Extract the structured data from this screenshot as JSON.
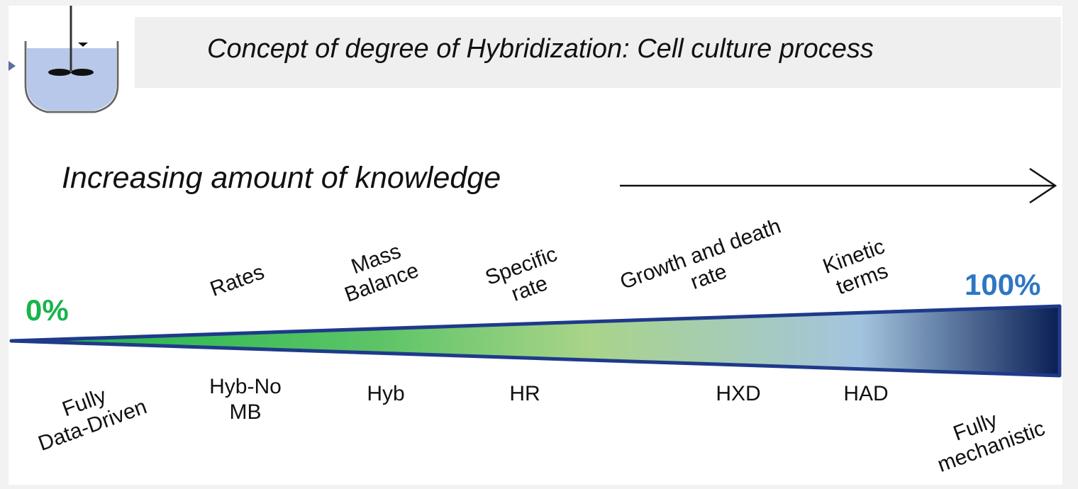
{
  "title": "Concept of degree of Hybridization: Cell culture process",
  "knowledge_axis": "Increasing amount of knowledge",
  "scale": {
    "start_label": "0%",
    "end_label": "100%",
    "start_color": "#18b44a",
    "end_color": "#2e76c2"
  },
  "knowledge_terms": [
    {
      "line1": "Rates",
      "line2": ""
    },
    {
      "line1": "Mass",
      "line2": "Balance"
    },
    {
      "line1": "Specific",
      "line2": "rate"
    },
    {
      "line1": "Growth and death",
      "line2": "rate"
    },
    {
      "line1": "Kinetic",
      "line2": "terms"
    }
  ],
  "model_labels": [
    {
      "line1": "Fully",
      "line2": "Data-Driven"
    },
    {
      "line1": "Hyb-No",
      "line2": "MB"
    },
    {
      "line1": "Hyb",
      "line2": ""
    },
    {
      "line1": "HR",
      "line2": ""
    },
    {
      "line1": "HXD",
      "line2": ""
    },
    {
      "line1": "HAD",
      "line2": ""
    },
    {
      "line1": "Fully",
      "line2": "mechanistic"
    }
  ],
  "wedge_colors": [
    "#1bb34a",
    "#5cc466",
    "#a9d489",
    "#a3c4df",
    "#0a1f55"
  ],
  "outline_color": "#1f3a8a"
}
